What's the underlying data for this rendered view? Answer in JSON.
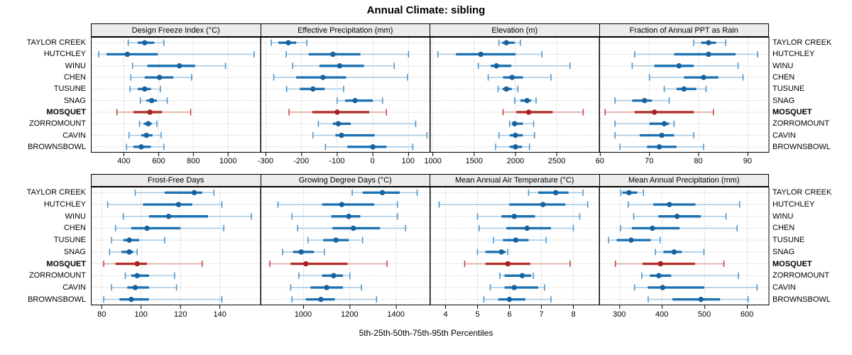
{
  "title": "Annual Climate: sibling",
  "caption": "5th-25th-50th-75th-95th Percentiles",
  "sites": [
    "TAYLOR CREEK",
    "HUTCHLEY",
    "WINU",
    "CHEN",
    "TUSUNE",
    "SNAG",
    "MOSQUET",
    "ZORROMOUNT",
    "CAVIN",
    "BROWNSBOWL"
  ],
  "highlight_site": "MOSQUET",
  "colors": {
    "blue_main": "#1f72b2",
    "blue_dot": "#17629e",
    "blue_light": "#a9cbe3",
    "blue_cap": "#4e96cb",
    "red_main": "#b23028",
    "red_dot": "#a6221e",
    "red_light": "#dba49f",
    "red_cap": "#bb4a42",
    "strip_bg": "#ececec",
    "grid": "#bdbdbd",
    "panel_border": "#000000"
  },
  "chart_data": [
    {
      "type": "dotplot",
      "title": "Design Freeze Index (°C)",
      "row": 0,
      "col": 0,
      "xlim": [
        210,
        1185
      ],
      "ticks": [
        400,
        600,
        800,
        1000
      ],
      "percentile_levels": [
        5,
        25,
        50,
        75,
        95
      ],
      "values": [
        [
          425,
          480,
          520,
          575,
          630
        ],
        [
          255,
          300,
          420,
          595,
          1150
        ],
        [
          450,
          535,
          720,
          810,
          985
        ],
        [
          440,
          520,
          605,
          685,
          790
        ],
        [
          435,
          480,
          520,
          555,
          610
        ],
        [
          495,
          530,
          560,
          590,
          650
        ],
        [
          360,
          455,
          550,
          620,
          785
        ],
        [
          490,
          515,
          540,
          560,
          590
        ],
        [
          430,
          500,
          530,
          565,
          615
        ],
        [
          415,
          455,
          500,
          555,
          630
        ]
      ]
    },
    {
      "type": "dotplot",
      "title": "Effective Precipitation (mm)",
      "row": 0,
      "col": 1,
      "xlim": [
        -315,
        160
      ],
      "ticks": [
        -300,
        -200,
        -100,
        0,
        100
      ],
      "percentile_levels": [
        5,
        25,
        50,
        75,
        95
      ],
      "values": [
        [
          -285,
          -265,
          -237,
          -215,
          -185
        ],
        [
          -243,
          -180,
          -112,
          -35,
          100
        ],
        [
          -225,
          -150,
          -93,
          -25,
          60
        ],
        [
          -278,
          -215,
          -140,
          -75,
          97
        ],
        [
          -242,
          -205,
          -168,
          -135,
          -82
        ],
        [
          -100,
          -78,
          -50,
          0,
          27
        ],
        [
          -235,
          -170,
          -100,
          -10,
          38
        ],
        [
          -153,
          -112,
          -97,
          -62,
          120
        ],
        [
          -168,
          -105,
          -88,
          5,
          152
        ],
        [
          -133,
          -72,
          0,
          38,
          112
        ]
      ]
    },
    {
      "type": "dotplot",
      "title": "Elevation (m)",
      "row": 0,
      "col": 2,
      "xlim": [
        960,
        3010
      ],
      "ticks": [
        1000,
        1500,
        2000,
        2500
      ],
      "percentile_levels": [
        5,
        25,
        50,
        75,
        95
      ],
      "values": [
        [
          1800,
          1840,
          1890,
          1990,
          2060
        ],
        [
          1060,
          1280,
          1580,
          2000,
          2320
        ],
        [
          1550,
          1700,
          1770,
          1950,
          2660
        ],
        [
          1670,
          1850,
          1960,
          2090,
          2430
        ],
        [
          1790,
          1845,
          1890,
          1955,
          2030
        ],
        [
          1990,
          2060,
          2140,
          2190,
          2250
        ],
        [
          1850,
          2010,
          2160,
          2450,
          2820
        ],
        [
          1930,
          1960,
          1990,
          2090,
          2220
        ],
        [
          1800,
          1930,
          2000,
          2090,
          2230
        ],
        [
          1760,
          1930,
          2000,
          2080,
          2170
        ]
      ]
    },
    {
      "type": "dotplot",
      "title": "Fraction of Annual PPT as Rain",
      "row": 0,
      "col": 3,
      "xlim": [
        59.8,
        94.2
      ],
      "ticks": [
        60,
        70,
        80,
        90
      ],
      "percentile_levels": [
        5,
        25,
        50,
        75,
        95
      ],
      "values": [
        [
          79,
          80.5,
          82,
          83.5,
          85.5
        ],
        [
          67,
          75,
          82,
          87.5,
          92
        ],
        [
          66.5,
          71,
          76,
          79,
          88
        ],
        [
          70,
          77,
          81,
          84,
          89
        ],
        [
          73,
          75.5,
          77,
          79.5,
          81.5
        ],
        [
          63,
          66.5,
          69,
          70.5,
          74
        ],
        [
          61,
          67,
          71,
          79,
          83
        ],
        [
          63,
          70,
          73,
          74,
          75
        ],
        [
          63,
          68,
          72.5,
          75,
          79
        ],
        [
          64,
          69.5,
          72,
          75.5,
          81
        ]
      ]
    },
    {
      "type": "dotplot",
      "title": "Frost-Free Days",
      "row": 1,
      "col": 0,
      "xlim": [
        74.5,
        160.5
      ],
      "ticks": [
        80,
        100,
        120,
        140
      ],
      "percentile_levels": [
        5,
        25,
        50,
        75,
        95
      ],
      "values": [
        [
          97,
          112,
          127,
          131,
          137
        ],
        [
          83,
          101,
          119,
          126,
          141
        ],
        [
          91,
          104,
          114,
          134,
          156
        ],
        [
          87,
          95,
          103,
          120,
          142
        ],
        [
          85,
          91,
          94,
          99,
          112
        ],
        [
          84,
          90,
          94,
          96,
          98
        ],
        [
          81,
          87,
          98,
          103,
          131
        ],
        [
          92,
          95,
          98,
          104,
          117
        ],
        [
          85,
          93,
          97,
          104,
          118
        ],
        [
          81,
          89,
          95,
          104,
          141
        ]
      ]
    },
    {
      "type": "dotplot",
      "title": "Growing Degree Days (°C)",
      "row": 1,
      "col": 1,
      "xlim": [
        815,
        1545
      ],
      "ticks": [
        1000,
        1200,
        1400
      ],
      "percentile_levels": [
        5,
        25,
        50,
        75,
        95
      ],
      "values": [
        [
          1210,
          1255,
          1340,
          1415,
          1490
        ],
        [
          890,
          1080,
          1165,
          1305,
          1405
        ],
        [
          950,
          1120,
          1195,
          1245,
          1405
        ],
        [
          975,
          1125,
          1215,
          1330,
          1440
        ],
        [
          1020,
          1085,
          1140,
          1195,
          1255
        ],
        [
          910,
          955,
          990,
          1045,
          1090
        ],
        [
          855,
          945,
          1010,
          1190,
          1360
        ],
        [
          980,
          1080,
          1130,
          1170,
          1200
        ],
        [
          945,
          1030,
          1100,
          1170,
          1250
        ],
        [
          950,
          1010,
          1075,
          1135,
          1315
        ]
      ]
    },
    {
      "type": "dotplot",
      "title": "Mean Annual Air Temperature (°C)",
      "row": 1,
      "col": 2,
      "xlim": [
        3.5,
        8.8
      ],
      "ticks": [
        4,
        5,
        6,
        7,
        8
      ],
      "percentile_levels": [
        5,
        25,
        50,
        75,
        95
      ],
      "values": [
        [
          6.6,
          6.9,
          7.45,
          7.85,
          8.3
        ],
        [
          3.8,
          6.0,
          7.05,
          7.75,
          8.45
        ],
        [
          5.0,
          5.75,
          6.15,
          6.8,
          8.2
        ],
        [
          5.05,
          5.9,
          6.55,
          7.3,
          8.0
        ],
        [
          5.5,
          5.8,
          6.2,
          6.6,
          7.15
        ],
        [
          5.0,
          5.25,
          5.75,
          5.88,
          5.95
        ],
        [
          4.6,
          5.25,
          5.95,
          6.65,
          7.9
        ],
        [
          5.7,
          5.85,
          6.4,
          6.68,
          6.75
        ],
        [
          5.4,
          5.85,
          6.15,
          6.9,
          7.1
        ],
        [
          5.2,
          5.65,
          6.0,
          6.5,
          7.3
        ]
      ]
    },
    {
      "type": "dotplot",
      "title": "Mean Annual Precipitation (mm)",
      "row": 1,
      "col": 3,
      "xlim": [
        252,
        650
      ],
      "ticks": [
        300,
        400,
        500,
        600
      ],
      "percentile_levels": [
        5,
        25,
        50,
        75,
        95
      ],
      "values": [
        [
          303,
          307,
          322,
          341,
          356
        ],
        [
          320,
          379,
          417,
          478,
          582
        ],
        [
          333,
          391,
          435,
          491,
          550
        ],
        [
          302,
          329,
          377,
          441,
          576
        ],
        [
          274,
          293,
          327,
          373,
          395
        ],
        [
          384,
          403,
          428,
          446,
          498
        ],
        [
          290,
          354,
          396,
          477,
          545
        ],
        [
          352,
          371,
          392,
          421,
          579
        ],
        [
          335,
          366,
          401,
          499,
          623
        ],
        [
          367,
          424,
          491,
          536,
          602
        ]
      ]
    }
  ]
}
